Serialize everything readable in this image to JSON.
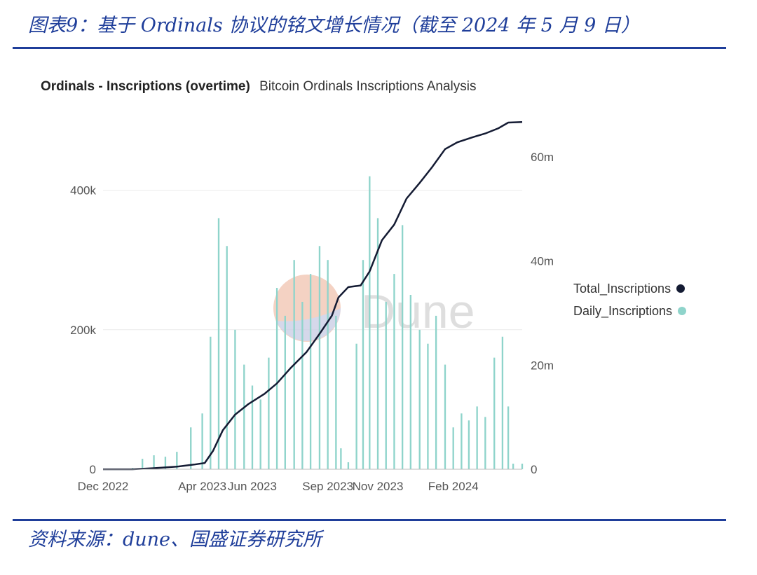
{
  "figure": {
    "title": "图表9：基于 Ordinals 协议的铭文增长情况（截至 2024 年 5 月 9 日）",
    "source": "资料来源：dune、国盛证券研究所"
  },
  "chart_header": {
    "title": "Ordinals - Inscriptions (overtime)",
    "subtitle": "Bitcoin Ordinals Inscriptions Analysis"
  },
  "watermark": "Dune",
  "colors": {
    "accent": "#1f3e9a",
    "bars": "#8fd4cb",
    "line": "#141b33"
  },
  "chart_data": {
    "type": "bar+line",
    "x_tick_labels": [
      "Dec 2022",
      "Apr 2023",
      "Jun 2023",
      "Sep 2023",
      "Nov 2023",
      "Feb 2024"
    ],
    "x_tick_dates": [
      "2022-12-15",
      "2023-04-15",
      "2023-06-15",
      "2023-09-15",
      "2023-11-15",
      "2024-02-15"
    ],
    "x_range": [
      "2022-12-15",
      "2024-05-09"
    ],
    "left_axis": {
      "ticks": [
        0,
        200000,
        400000
      ],
      "tick_labels": [
        "0",
        "200k",
        "400k"
      ],
      "range": [
        0,
        500000
      ]
    },
    "right_axis": {
      "ticks": [
        0,
        20000000,
        40000000,
        60000000
      ],
      "tick_labels": [
        "0",
        "20m",
        "40m",
        "60m"
      ],
      "range": [
        0,
        67000000
      ]
    },
    "grid": true,
    "legend_position": "right",
    "series": [
      {
        "name": "Daily_Inscriptions",
        "type": "bar",
        "axis": "left",
        "points": [
          {
            "date": "2022-12-15",
            "value": 0
          },
          {
            "date": "2023-01-05",
            "value": 0
          },
          {
            "date": "2023-01-20",
            "value": 2000
          },
          {
            "date": "2023-02-01",
            "value": 15000
          },
          {
            "date": "2023-02-15",
            "value": 20000
          },
          {
            "date": "2023-03-01",
            "value": 18000
          },
          {
            "date": "2023-03-15",
            "value": 25000
          },
          {
            "date": "2023-04-01",
            "value": 60000
          },
          {
            "date": "2023-04-15",
            "value": 80000
          },
          {
            "date": "2023-04-25",
            "value": 190000
          },
          {
            "date": "2023-05-05",
            "value": 360000
          },
          {
            "date": "2023-05-15",
            "value": 320000
          },
          {
            "date": "2023-05-25",
            "value": 200000
          },
          {
            "date": "2023-06-05",
            "value": 150000
          },
          {
            "date": "2023-06-15",
            "value": 120000
          },
          {
            "date": "2023-06-25",
            "value": 100000
          },
          {
            "date": "2023-07-05",
            "value": 160000
          },
          {
            "date": "2023-07-15",
            "value": 260000
          },
          {
            "date": "2023-07-25",
            "value": 220000
          },
          {
            "date": "2023-08-05",
            "value": 300000
          },
          {
            "date": "2023-08-15",
            "value": 240000
          },
          {
            "date": "2023-08-25",
            "value": 280000
          },
          {
            "date": "2023-09-05",
            "value": 320000
          },
          {
            "date": "2023-09-15",
            "value": 300000
          },
          {
            "date": "2023-09-25",
            "value": 220000
          },
          {
            "date": "2023-10-01",
            "value": 30000
          },
          {
            "date": "2023-10-10",
            "value": 10000
          },
          {
            "date": "2023-10-20",
            "value": 180000
          },
          {
            "date": "2023-10-28",
            "value": 300000
          },
          {
            "date": "2023-11-05",
            "value": 420000
          },
          {
            "date": "2023-11-15",
            "value": 360000
          },
          {
            "date": "2023-11-25",
            "value": 240000
          },
          {
            "date": "2023-12-05",
            "value": 280000
          },
          {
            "date": "2023-12-15",
            "value": 350000
          },
          {
            "date": "2023-12-25",
            "value": 250000
          },
          {
            "date": "2024-01-05",
            "value": 200000
          },
          {
            "date": "2024-01-15",
            "value": 180000
          },
          {
            "date": "2024-01-25",
            "value": 220000
          },
          {
            "date": "2024-02-05",
            "value": 150000
          },
          {
            "date": "2024-02-15",
            "value": 60000
          },
          {
            "date": "2024-02-25",
            "value": 80000
          },
          {
            "date": "2024-03-05",
            "value": 70000
          },
          {
            "date": "2024-03-15",
            "value": 90000
          },
          {
            "date": "2024-03-25",
            "value": 75000
          },
          {
            "date": "2024-04-05",
            "value": 160000
          },
          {
            "date": "2024-04-15",
            "value": 190000
          },
          {
            "date": "2024-04-22",
            "value": 90000
          },
          {
            "date": "2024-04-28",
            "value": 8000
          },
          {
            "date": "2024-05-09",
            "value": 8000
          }
        ]
      },
      {
        "name": "Total_Inscriptions",
        "type": "line",
        "axis": "right",
        "points": [
          {
            "date": "2022-12-15",
            "value": 0
          },
          {
            "date": "2023-01-20",
            "value": 0
          },
          {
            "date": "2023-02-15",
            "value": 200000
          },
          {
            "date": "2023-03-15",
            "value": 500000
          },
          {
            "date": "2023-04-05",
            "value": 900000
          },
          {
            "date": "2023-04-18",
            "value": 1200000
          },
          {
            "date": "2023-04-28",
            "value": 3500000
          },
          {
            "date": "2023-05-10",
            "value": 7500000
          },
          {
            "date": "2023-05-25",
            "value": 10500000
          },
          {
            "date": "2023-06-10",
            "value": 12500000
          },
          {
            "date": "2023-06-30",
            "value": 14500000
          },
          {
            "date": "2023-07-15",
            "value": 16500000
          },
          {
            "date": "2023-08-01",
            "value": 19500000
          },
          {
            "date": "2023-08-20",
            "value": 22500000
          },
          {
            "date": "2023-09-05",
            "value": 26000000
          },
          {
            "date": "2023-09-20",
            "value": 29500000
          },
          {
            "date": "2023-09-28",
            "value": 33000000
          },
          {
            "date": "2023-10-10",
            "value": 35000000
          },
          {
            "date": "2023-10-25",
            "value": 35300000
          },
          {
            "date": "2023-11-05",
            "value": 38000000
          },
          {
            "date": "2023-11-20",
            "value": 44000000
          },
          {
            "date": "2023-12-05",
            "value": 47000000
          },
          {
            "date": "2023-12-20",
            "value": 52000000
          },
          {
            "date": "2024-01-05",
            "value": 55000000
          },
          {
            "date": "2024-01-20",
            "value": 58000000
          },
          {
            "date": "2024-02-05",
            "value": 61500000
          },
          {
            "date": "2024-02-20",
            "value": 62800000
          },
          {
            "date": "2024-03-10",
            "value": 63800000
          },
          {
            "date": "2024-03-25",
            "value": 64500000
          },
          {
            "date": "2024-04-10",
            "value": 65500000
          },
          {
            "date": "2024-04-22",
            "value": 66600000
          },
          {
            "date": "2024-05-09",
            "value": 66700000
          }
        ]
      }
    ]
  }
}
